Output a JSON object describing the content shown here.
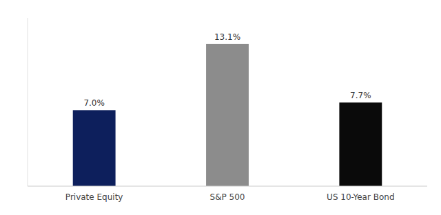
{
  "chart_data": {
    "type": "bar",
    "categories": [
      "Private Equity",
      "S&P 500",
      "US 10-Year Bond"
    ],
    "values": [
      7.0,
      13.1,
      7.7
    ],
    "value_labels": [
      "7.0%",
      "13.1%",
      "7.7%"
    ],
    "colors": [
      "#0d1f5c",
      "#8c8c8c",
      "#0a0a0a"
    ],
    "ylim": [
      0,
      15.5
    ],
    "grid": false,
    "data_labels": true,
    "tick_labels": "x"
  }
}
